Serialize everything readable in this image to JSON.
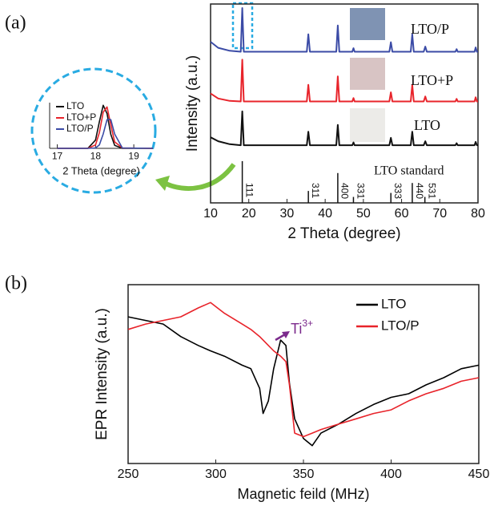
{
  "panel_labels": [
    "(a)",
    "(b)"
  ],
  "chart_data": [
    {
      "type": "line",
      "xlabel": "2 Theta (degree)",
      "ylabel": "Intensity (a.u.)",
      "xlim": [
        10,
        80
      ],
      "ylim": [
        0,
        100
      ],
      "xticks": [
        10,
        20,
        30,
        40,
        50,
        60,
        70,
        80
      ],
      "x": [
        10,
        12,
        15,
        17.9,
        18.3,
        18.7,
        25,
        35.2,
        35.6,
        36.0,
        40,
        42.9,
        43.3,
        43.7,
        47.1,
        47.4,
        47.7,
        52,
        56.8,
        57.2,
        57.6,
        62.4,
        62.8,
        63.2,
        65.8,
        66.2,
        66.6,
        74.1,
        74.4,
        74.7,
        79.1,
        79.4,
        79.7,
        80
      ],
      "series": [
        {
          "name": "LTO/P",
          "color": "#3b4ba6",
          "values": [
            81,
            78,
            76.5,
            76,
            98,
            76,
            76,
            76,
            84.8,
            76,
            76,
            76,
            89.2,
            76,
            76,
            77.8,
            76,
            76,
            76,
            80.8,
            76,
            76,
            84.8,
            76,
            76,
            78.6,
            76,
            76,
            77.3,
            76,
            76,
            78.2,
            76,
            76
          ]
        },
        {
          "name": "LTO+P",
          "color": "#e8242b",
          "values": [
            55,
            52.5,
            51.3,
            51,
            72,
            51,
            51,
            51,
            59.4,
            51,
            51,
            51,
            63.6,
            51,
            51,
            52.7,
            51,
            51,
            51,
            55.6,
            51,
            51,
            59.4,
            51,
            51,
            53.5,
            51,
            51,
            52.3,
            51,
            51,
            53.1,
            51,
            51
          ]
        },
        {
          "name": "LTO",
          "color": "#111111",
          "values": [
            33,
            31,
            29.5,
            29,
            46,
            29,
            29,
            29,
            35.8,
            29,
            29,
            29,
            39.2,
            29,
            29,
            30.4,
            29,
            29,
            29,
            32.7,
            29,
            29,
            35.8,
            29,
            29,
            31,
            29,
            29,
            30,
            29,
            29,
            30.7,
            29,
            29
          ]
        }
      ],
      "reference": {
        "name": "LTO standard",
        "color": "#111111",
        "x": [
          18.3,
          35.6,
          43.3,
          47.4,
          57.2,
          62.8,
          66.1
        ],
        "values": [
          21,
          6,
          15,
          3,
          5,
          10,
          3
        ],
        "labels": [
          "111",
          "311",
          "400",
          "331",
          "333",
          "440",
          "531"
        ]
      }
    },
    {
      "type": "line",
      "xlabel": "2 Theta (degree)",
      "xlim": [
        16.8,
        19.5
      ],
      "ylim": [
        0,
        105
      ],
      "xticks": [
        17,
        18,
        19
      ],
      "x": [
        17,
        17.8,
        18.0,
        18.1,
        18.2,
        18.3,
        18.4,
        18.5,
        18.7,
        19.5
      ],
      "series": [
        {
          "name": "LTO",
          "color": "#111111",
          "values": [
            0,
            0.2,
            19,
            61,
            99,
            80,
            32,
            7,
            0,
            0
          ]
        },
        {
          "name": "LTO+P",
          "color": "#e8242b",
          "values": [
            0,
            0,
            8,
            36,
            83,
            95,
            54,
            15,
            1,
            0
          ]
        },
        {
          "name": "LTO/P",
          "color": "#3b4ba6",
          "values": [
            0,
            0,
            1,
            8,
            33,
            66,
            66,
            33,
            1,
            0
          ]
        }
      ]
    },
    {
      "type": "line",
      "xlabel": "Magnetic feild (MHz)",
      "ylabel": "EPR Intensity (a.u.)",
      "xlim": [
        250,
        450
      ],
      "ylim": [
        0,
        100
      ],
      "xticks": [
        250,
        300,
        350,
        400,
        450
      ],
      "x": [
        250,
        260,
        270,
        280,
        290,
        297,
        305,
        315,
        320,
        325,
        327,
        330,
        333,
        337,
        340,
        342,
        345,
        350,
        355,
        360,
        370,
        380,
        390,
        400,
        410,
        420,
        430,
        440,
        450
      ],
      "series": [
        {
          "name": "LTO",
          "color": "#000000",
          "values": [
            82,
            80,
            78,
            71,
            66,
            63,
            60,
            55,
            53,
            42,
            28,
            35,
            53,
            69,
            66,
            45,
            25,
            14,
            10,
            17,
            22,
            28,
            33,
            37,
            39,
            44,
            48,
            53,
            55
          ]
        },
        {
          "name": "LTO/P",
          "color": "#e8232a",
          "values": [
            75,
            78,
            80,
            82,
            87,
            90,
            84,
            78,
            75,
            71,
            69,
            66,
            63,
            60,
            57,
            44,
            17,
            15,
            17,
            19,
            22,
            25,
            28,
            30,
            35,
            39,
            42,
            46,
            48
          ]
        }
      ],
      "annotation": {
        "text": "Ti",
        "sup": "3+",
        "color": "#7b2a8c"
      }
    }
  ]
}
